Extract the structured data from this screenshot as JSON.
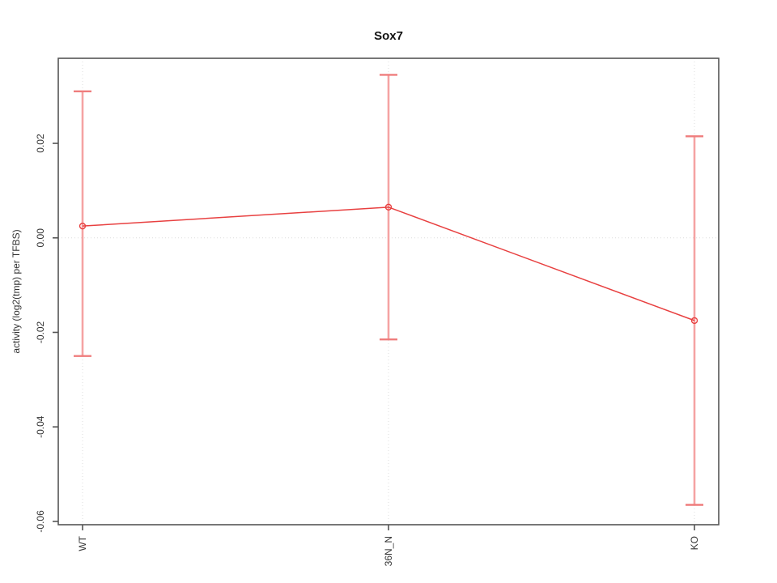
{
  "chart_data": {
    "type": "line",
    "title": "Sox7",
    "xlabel": "",
    "ylabel": "activity (log2(tmp) per TFBS)",
    "categories": [
      "WT",
      "36N_N",
      "KO"
    ],
    "series": [
      {
        "name": "mean activity",
        "values": [
          0.0025,
          0.0065,
          -0.0175
        ],
        "error_lower": [
          -0.025,
          -0.0215,
          -0.0565
        ],
        "error_upper": [
          0.031,
          0.0345,
          0.0215
        ]
      }
    ],
    "yticks": [
      0.02,
      0.0,
      -0.02,
      -0.04,
      -0.06
    ],
    "ytick_labels": [
      "0.02",
      "0.00",
      "-0.02",
      "-0.04",
      "-0.06"
    ],
    "ylim": [
      -0.0607,
      0.038
    ],
    "legend": "none",
    "grid": {
      "vertical_dotted_at_categories": true,
      "horizontal_dotted_at_zero": true
    },
    "marker": "open-circle",
    "colors": {
      "line": "#e84040",
      "point": "#e84040",
      "error_bar": "#f5a3a3",
      "error_cap": "#ef7d7d",
      "axis": "#555555",
      "grid": "#dcdcdc",
      "text": "#333333",
      "background": "#ffffff"
    }
  }
}
